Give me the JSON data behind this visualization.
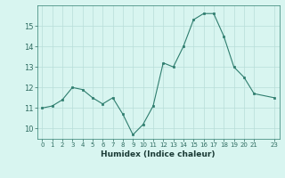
{
  "x": [
    0,
    1,
    2,
    3,
    4,
    5,
    6,
    7,
    8,
    9,
    10,
    11,
    12,
    13,
    14,
    15,
    16,
    17,
    18,
    19,
    20,
    21,
    23
  ],
  "y": [
    11.0,
    11.1,
    11.4,
    12.0,
    11.9,
    11.5,
    11.2,
    11.5,
    10.7,
    9.7,
    10.2,
    11.1,
    13.2,
    13.0,
    14.0,
    15.3,
    15.6,
    15.6,
    14.5,
    13.0,
    12.5,
    11.7,
    11.5
  ],
  "xlabel": "Humidex (Indice chaleur)",
  "ylim": [
    9.5,
    16.0
  ],
  "xlim": [
    -0.5,
    23.5
  ],
  "yticks": [
    10,
    11,
    12,
    13,
    14,
    15
  ],
  "xticks": [
    0,
    1,
    2,
    3,
    4,
    5,
    6,
    7,
    8,
    9,
    10,
    11,
    12,
    13,
    14,
    15,
    16,
    17,
    18,
    19,
    20,
    21,
    23
  ],
  "xtick_labels": [
    "0",
    "1",
    "2",
    "3",
    "4",
    "5",
    "6",
    "7",
    "8",
    "9",
    "10",
    "11",
    "12",
    "13",
    "14",
    "15",
    "16",
    "17",
    "18",
    "19",
    "20",
    "21",
    "23"
  ],
  "line_color": "#2e7d6e",
  "marker_color": "#2e7d6e",
  "bg_color": "#d8f5f0",
  "grid_color": "#b8ddd8"
}
